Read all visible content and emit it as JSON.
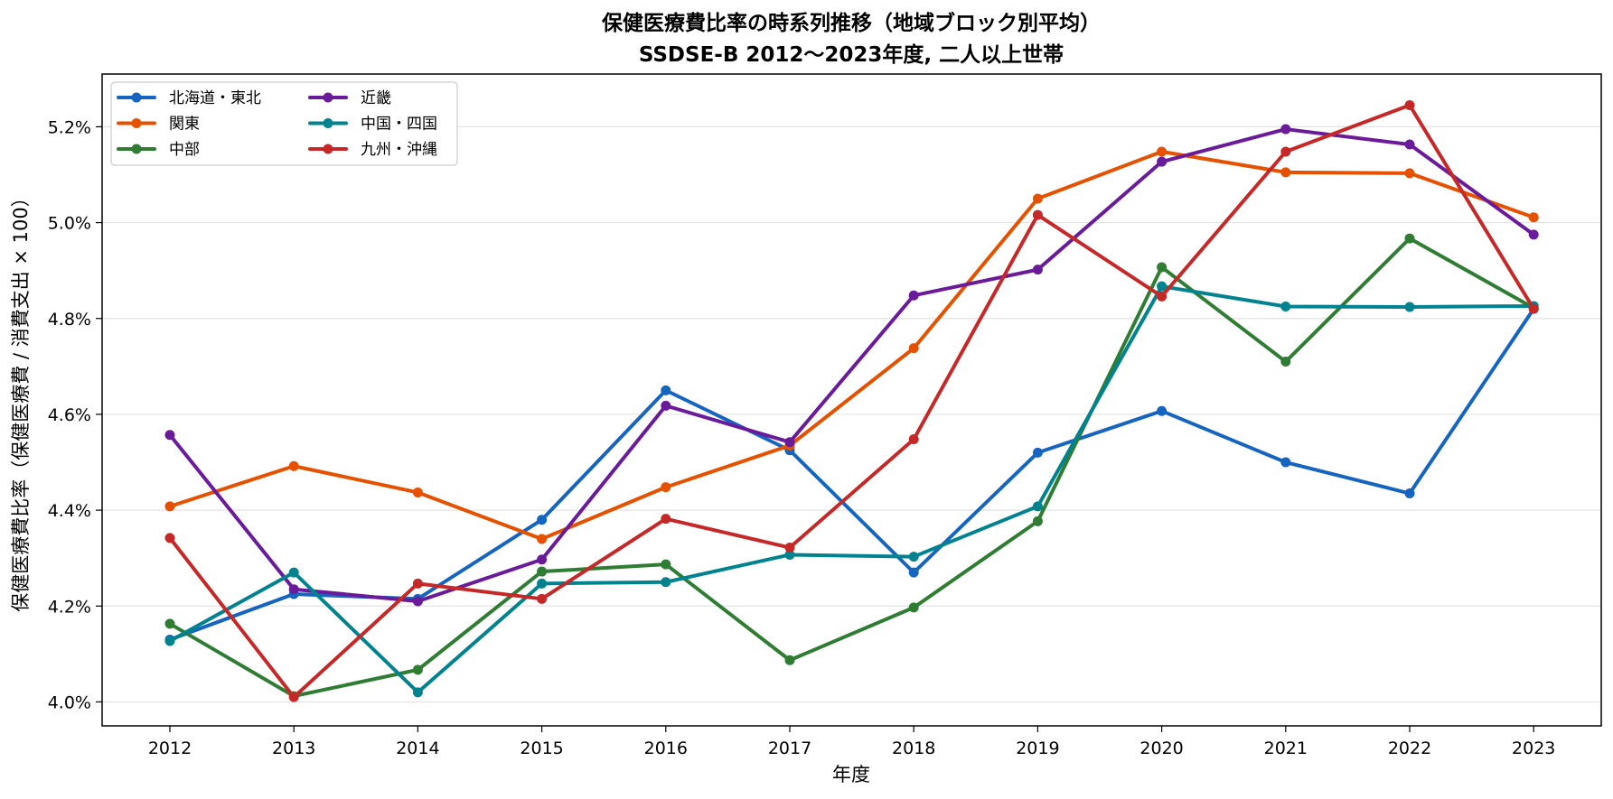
{
  "chart_data": {
    "type": "line",
    "title": "保健医療費比率の時系列推移（地域ブロック別平均）",
    "subtitle": "SSDSE-B 2012〜2023年度, 二人以上世帯",
    "xlabel": "年度",
    "ylabel": "保健医療費比率（保健医療費 / 消費支出 × 100）",
    "x": [
      2012,
      2013,
      2014,
      2015,
      2016,
      2017,
      2018,
      2019,
      2020,
      2021,
      2022,
      2023
    ],
    "x_tick_labels": [
      "2012",
      "2013",
      "2014",
      "2015",
      "2016",
      "2017",
      "2018",
      "2019",
      "2020",
      "2021",
      "2022",
      "2023"
    ],
    "ylim": [
      3.95,
      5.31
    ],
    "y_ticks": [
      4.0,
      4.2,
      4.4,
      4.6,
      4.8,
      5.0,
      5.2
    ],
    "y_tick_labels": [
      "4.0%",
      "4.2%",
      "4.4%",
      "4.6%",
      "4.8%",
      "5.0%",
      "5.2%"
    ],
    "grid": "horizontal",
    "legend_position": "top-left",
    "legend_columns": 2,
    "series": [
      {
        "name": "北海道・東北",
        "color": "#1565c0",
        "values": [
          4.13,
          4.225,
          4.215,
          4.38,
          4.65,
          4.525,
          4.27,
          4.52,
          4.607,
          4.5,
          4.435,
          4.82
        ]
      },
      {
        "name": "関東",
        "color": "#e65100",
        "values": [
          4.408,
          4.492,
          4.437,
          4.34,
          4.448,
          4.535,
          4.738,
          5.05,
          5.148,
          5.105,
          5.103,
          5.011
        ]
      },
      {
        "name": "中部",
        "color": "#2e7d32",
        "values": [
          4.163,
          4.012,
          4.067,
          4.272,
          4.287,
          4.087,
          4.197,
          4.377,
          4.907,
          4.71,
          4.967,
          4.822
        ]
      },
      {
        "name": "近畿",
        "color": "#6a1b9a",
        "values": [
          4.557,
          4.235,
          4.21,
          4.297,
          4.618,
          4.542,
          4.848,
          4.902,
          5.127,
          5.195,
          5.163,
          4.975
        ]
      },
      {
        "name": "中国・四国",
        "color": "#00838f",
        "values": [
          4.127,
          4.27,
          4.02,
          4.247,
          4.25,
          4.307,
          4.303,
          4.408,
          4.867,
          4.825,
          4.824,
          4.826
        ]
      },
      {
        "name": "九州・沖縄",
        "color": "#c62828",
        "values": [
          4.342,
          4.01,
          4.247,
          4.215,
          4.382,
          4.322,
          4.548,
          5.016,
          4.846,
          5.148,
          5.245,
          4.82
        ]
      }
    ]
  }
}
